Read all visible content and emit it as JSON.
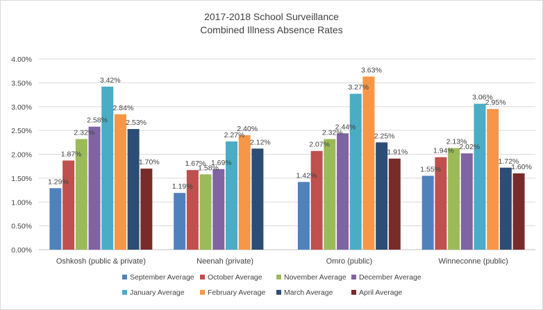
{
  "chart_data": {
    "type": "bar",
    "title": "2017-2018 School Surveillance",
    "subtitle": "Combined Illness Absence Rates",
    "categories": [
      "Oshkosh (public & private)",
      "Neenah (private)",
      "Omro (public)",
      "Winneconne (public)"
    ],
    "ylim": [
      0,
      4
    ],
    "yticks": [
      "0.00%",
      "0.50%",
      "1.00%",
      "1.50%",
      "2.00%",
      "2.50%",
      "3.00%",
      "3.50%",
      "4.00%"
    ],
    "grid": true,
    "legend_position": "bottom",
    "series": [
      {
        "name": "September Average",
        "color": "#4f81bd",
        "values": [
          1.29,
          1.19,
          1.42,
          1.55
        ],
        "labels": [
          "1.29%",
          "1.19%",
          "1.42%",
          "1.55%"
        ]
      },
      {
        "name": "October Average",
        "color": "#c0504d",
        "values": [
          1.87,
          1.67,
          2.07,
          1.94
        ],
        "labels": [
          "1.87%",
          "1.67%",
          "2.07%",
          "1.94%"
        ]
      },
      {
        "name": "November Average",
        "color": "#9bbb59",
        "values": [
          2.32,
          1.58,
          2.32,
          2.13
        ],
        "labels": [
          "2.32%",
          "1.58%",
          "2.32%",
          "2.13%"
        ]
      },
      {
        "name": "December Average",
        "color": "#8064a2",
        "values": [
          2.58,
          1.69,
          2.44,
          2.02
        ],
        "labels": [
          "2.58%",
          "1.69%",
          "2.44%",
          "2.02%"
        ]
      },
      {
        "name": "January Average",
        "color": "#4bacc6",
        "values": [
          3.42,
          2.27,
          3.27,
          3.06
        ],
        "labels": [
          "3.42%",
          "2.27%",
          "3.27%",
          "3.06%"
        ]
      },
      {
        "name": "February Average",
        "color": "#f79646",
        "values": [
          2.84,
          2.4,
          3.63,
          2.95
        ],
        "labels": [
          "2.84%",
          "2.40%",
          "3.63%",
          "2.95%"
        ]
      },
      {
        "name": "March Average",
        "color": "#2c4d75",
        "values": [
          2.53,
          2.12,
          2.25,
          1.72
        ],
        "labels": [
          "2.53%",
          "2.12%",
          "2.25%",
          "1.72%"
        ]
      },
      {
        "name": "April Average",
        "color": "#772c2a",
        "values": [
          1.7,
          null,
          1.91,
          1.6
        ],
        "labels": [
          "1.70%",
          null,
          "1.91%",
          "1.60%"
        ]
      }
    ]
  }
}
